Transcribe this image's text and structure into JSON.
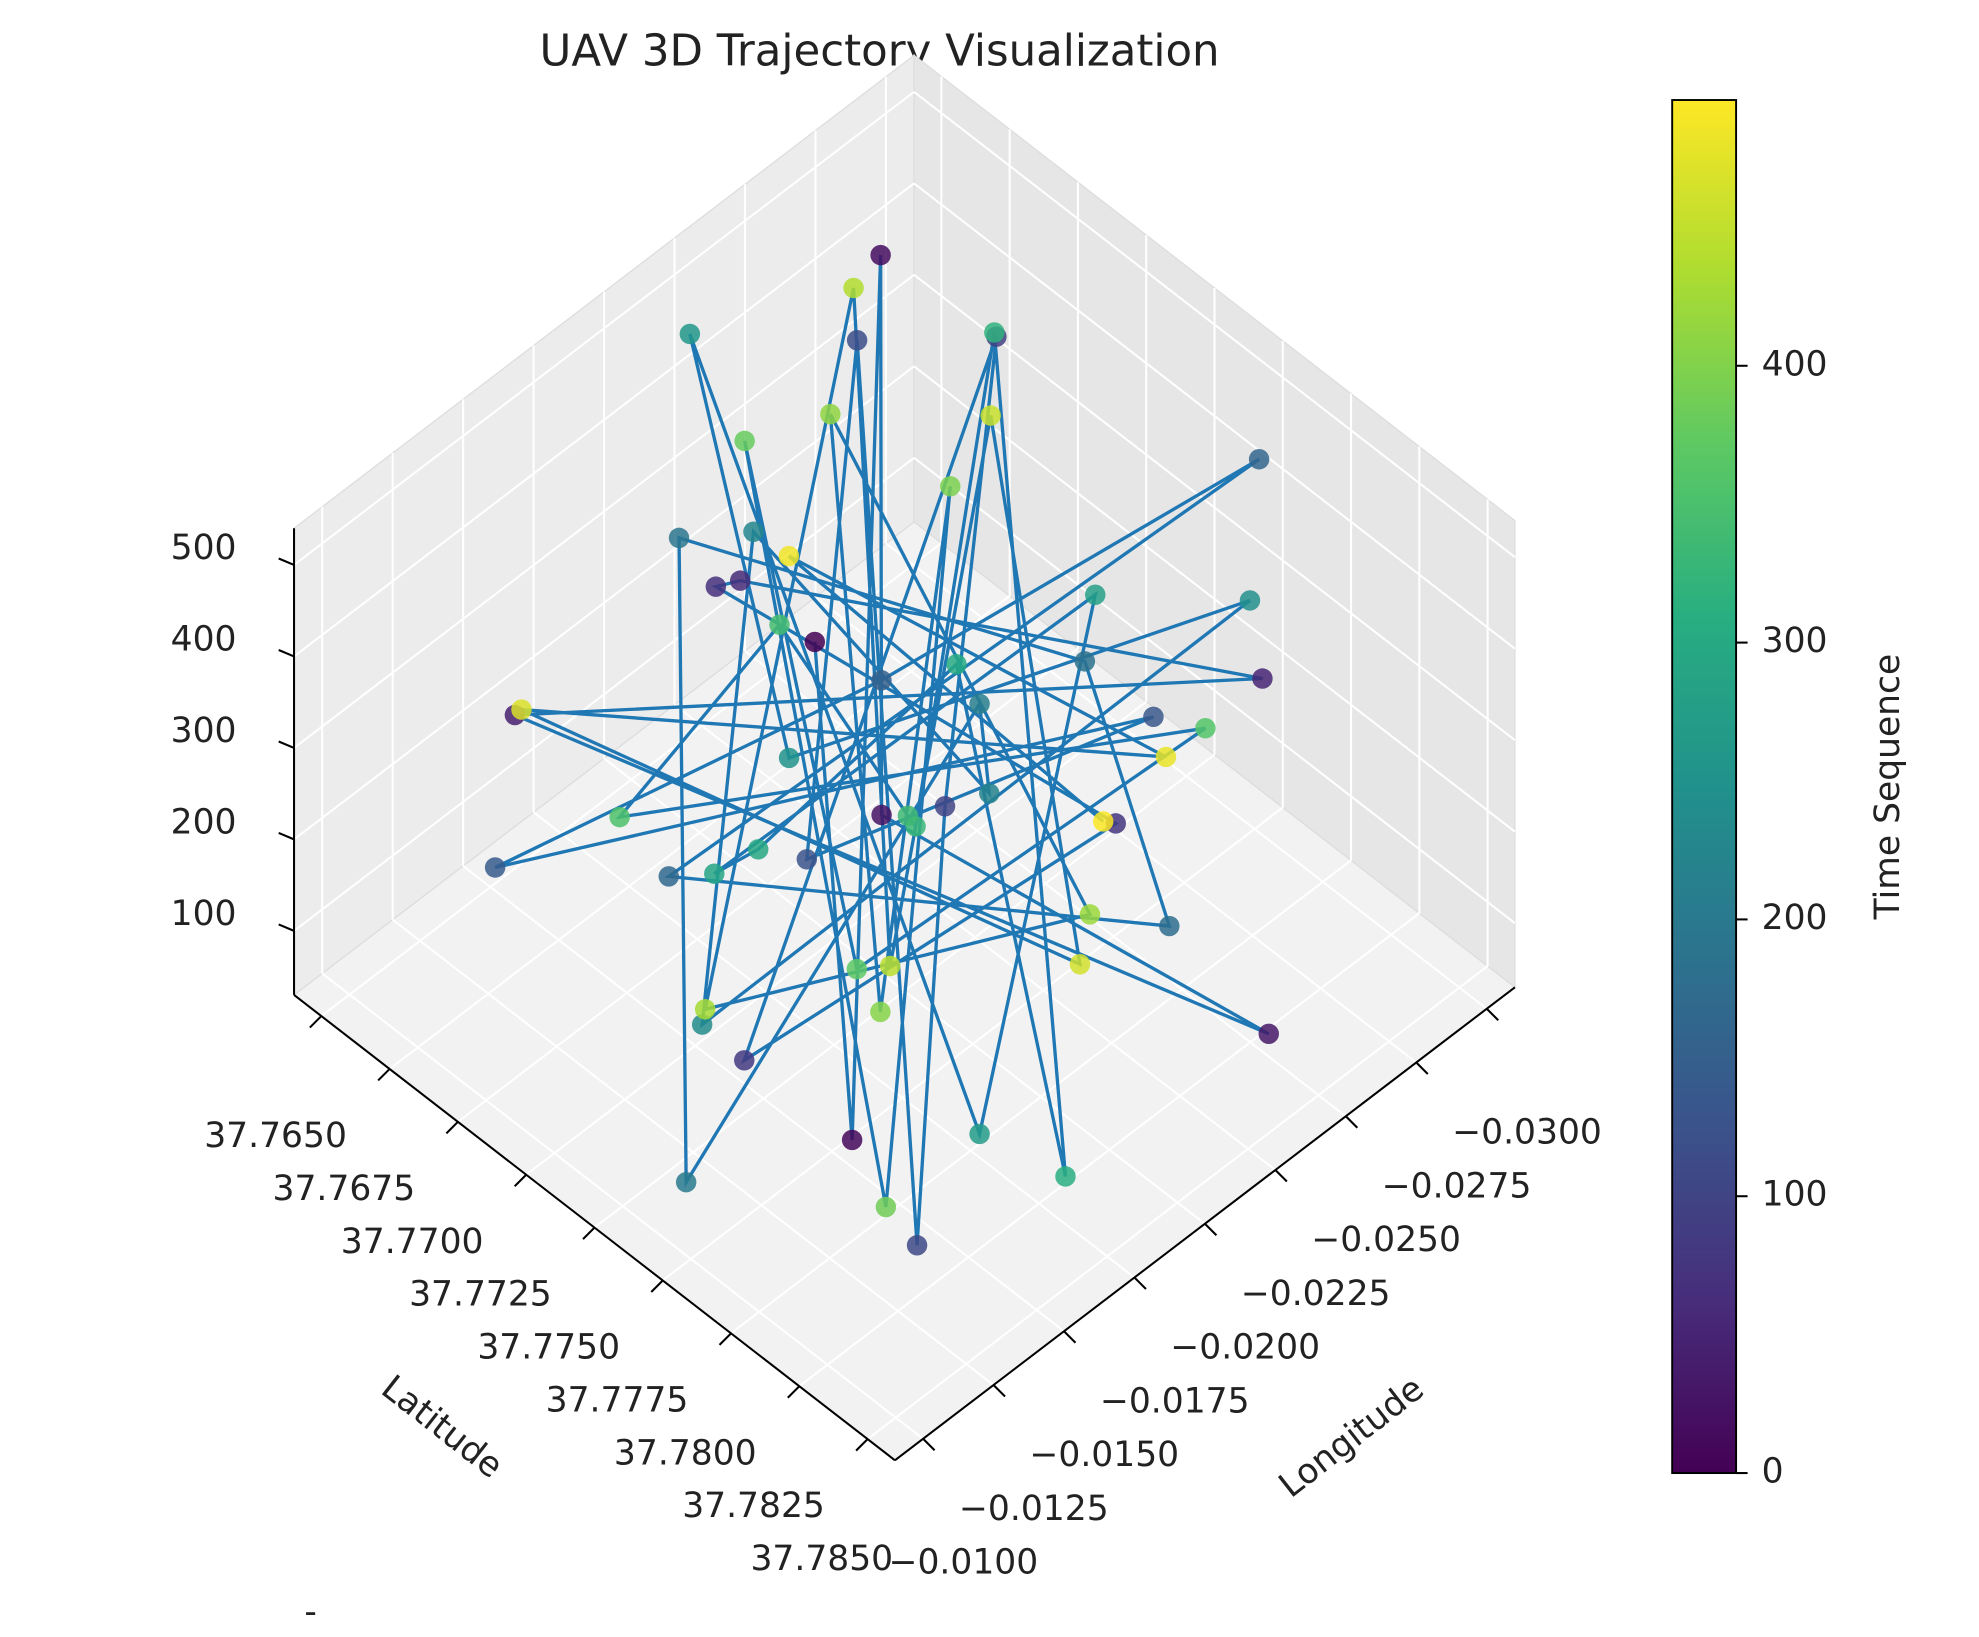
{
  "chart_data": {
    "type": "scatter3d",
    "title": "UAV 3D Trajectory Visualization",
    "xlabel": "Latitude",
    "ylabel": "Longitude",
    "colorbar_label": "Time Sequence",
    "corner_text": "-",
    "colormap": "viridis",
    "line_color": "#1f77b4",
    "x": [
      37.7712,
      37.7801,
      37.7668,
      37.7754,
      37.7839,
      37.7693,
      37.7782,
      37.7727,
      37.7651,
      37.7816,
      37.7745,
      37.7698,
      37.777,
      37.7832,
      37.7679,
      37.7739,
      37.7804,
      37.7661,
      37.7723,
      37.7788,
      37.7706,
      37.7848,
      37.775,
      37.7685,
      37.7765,
      37.7729,
      37.7812,
      37.7672,
      37.7743,
      37.7796,
      37.7716,
      37.7658,
      37.7826,
      37.776,
      37.7701,
      37.7779,
      37.7735,
      37.7843,
      37.7689,
      37.7752,
      37.7808,
      37.7664,
      37.772,
      37.779,
      37.7747,
      37.7676,
      37.7834,
      37.771,
      37.7768,
      37.7695,
      37.7821,
      37.7741,
      37.7655,
      37.7785,
      37.7731,
      37.7806,
      37.7682,
      37.7757,
      37.7718,
      37.7798
    ],
    "y": [
      -0.0205,
      -0.0132,
      -0.0271,
      -0.0188,
      -0.0243,
      -0.0117,
      -0.0296,
      -0.0164,
      -0.0229,
      -0.0211,
      -0.0148,
      -0.0283,
      -0.0195,
      -0.0125,
      -0.0252,
      -0.0176,
      -0.0236,
      -0.0141,
      -0.0218,
      -0.0289,
      -0.0159,
      -0.0199,
      -0.0264,
      -0.0183,
      -0.0108,
      -0.0247,
      -0.017,
      -0.0222,
      -0.0135,
      -0.0278,
      -0.0192,
      -0.0213,
      -0.0153,
      -0.0258,
      -0.018,
      -0.012,
      -0.0233,
      -0.0167,
      -0.0291,
      -0.0202,
      -0.0145,
      -0.0239,
      -0.0128,
      -0.0268,
      -0.0186,
      -0.0215,
      -0.0112,
      -0.0255,
      -0.0174,
      -0.0227,
      -0.0197,
      -0.0138,
      -0.0274,
      -0.0161,
      -0.0249,
      -0.0208,
      -0.013,
      -0.0286,
      -0.019,
      -0.0224
    ],
    "z": [
      312,
      145,
      478,
      260,
      88,
      395,
      220,
      510,
      175,
      340,
      65,
      430,
      290,
      118,
      455,
      205,
      370,
      98,
      265,
      490,
      150,
      330,
      240,
      415,
      72,
      185,
      460,
      300,
      130,
      380,
      225,
      505,
      160,
      350,
      92,
      440,
      275,
      120,
      395,
      210,
      485,
      140,
      320,
      250,
      80,
      425,
      195,
      360,
      110,
      470,
      285,
      135,
      405,
      230,
      500,
      170,
      345,
      100,
      455,
      270
    ],
    "time": [
      0,
      8,
      17,
      25,
      34,
      42,
      50,
      59,
      67,
      76,
      84,
      92,
      101,
      109,
      118,
      126,
      134,
      143,
      151,
      160,
      168,
      176,
      185,
      193,
      202,
      210,
      218,
      227,
      235,
      244,
      252,
      260,
      269,
      277,
      286,
      294,
      302,
      311,
      319,
      328,
      336,
      344,
      353,
      361,
      370,
      378,
      386,
      395,
      403,
      412,
      420,
      428,
      437,
      445,
      454,
      462,
      470,
      479,
      487,
      496
    ],
    "xlim": [
      37.764,
      37.786
    ],
    "ylim": [
      -0.031,
      -0.009
    ],
    "zlim": [
      30,
      540
    ],
    "clim": [
      0,
      496
    ],
    "xticks": [
      {
        "value": 37.765,
        "label": "37.7650"
      },
      {
        "value": 37.7675,
        "label": "37.7675"
      },
      {
        "value": 37.77,
        "label": "37.7700"
      },
      {
        "value": 37.7725,
        "label": "37.7725"
      },
      {
        "value": 37.775,
        "label": "37.7750"
      },
      {
        "value": 37.7775,
        "label": "37.7775"
      },
      {
        "value": 37.78,
        "label": "37.7800"
      },
      {
        "value": 37.7825,
        "label": "37.7825"
      },
      {
        "value": 37.785,
        "label": "37.7850"
      }
    ],
    "yticks": [
      {
        "value": -0.03,
        "label": "−0.0300"
      },
      {
        "value": -0.0275,
        "label": "−0.0275"
      },
      {
        "value": -0.025,
        "label": "−0.0250"
      },
      {
        "value": -0.0225,
        "label": "−0.0225"
      },
      {
        "value": -0.02,
        "label": "−0.0200"
      },
      {
        "value": -0.0175,
        "label": "−0.0175"
      },
      {
        "value": -0.015,
        "label": "−0.0150"
      },
      {
        "value": -0.0125,
        "label": "−0.0125"
      },
      {
        "value": -0.01,
        "label": "−0.0100"
      }
    ],
    "zticks": [
      100,
      200,
      300,
      400,
      500
    ],
    "cticks": [
      0,
      100,
      200,
      300,
      400
    ],
    "grid": true
  }
}
